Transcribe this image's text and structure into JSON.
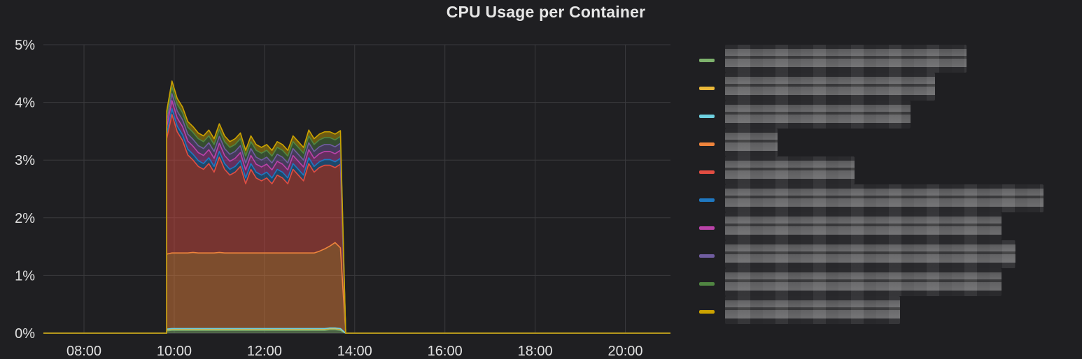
{
  "panel": {
    "title": "CPU Usage per Container"
  },
  "colors": {
    "background": "#1f1f22",
    "grid": "#3a3a3d",
    "text": "#e0e0e0"
  },
  "chart_data": {
    "type": "area",
    "stacked": true,
    "title": "CPU Usage per Container",
    "xlabel": "",
    "ylabel": "",
    "y_unit": "%",
    "xlim": [
      "07:06",
      "21:00"
    ],
    "ylim": [
      0,
      5
    ],
    "x_ticks": [
      "08:00",
      "10:00",
      "12:00",
      "14:00",
      "16:00",
      "18:00",
      "20:00"
    ],
    "y_ticks": [
      "0%",
      "1%",
      "2%",
      "3%",
      "4%",
      "5%"
    ],
    "grid": true,
    "legend_position": "right",
    "active_window": [
      "09:50",
      "13:50"
    ],
    "x": [
      "09:50",
      "09:57",
      "10:04",
      "10:11",
      "10:18",
      "10:25",
      "10:32",
      "10:39",
      "10:46",
      "10:53",
      "11:00",
      "11:07",
      "11:14",
      "11:21",
      "11:28",
      "11:35",
      "11:42",
      "11:49",
      "11:56",
      "12:03",
      "12:10",
      "12:17",
      "12:24",
      "12:31",
      "12:38",
      "12:45",
      "12:52",
      "12:59",
      "13:06",
      "13:13",
      "13:20",
      "13:27",
      "13:34",
      "13:41",
      "13:48"
    ],
    "series": [
      {
        "color": "#7eb26d",
        "values": [
          0.04,
          0.05,
          0.05,
          0.05,
          0.05,
          0.05,
          0.05,
          0.05,
          0.05,
          0.05,
          0.05,
          0.05,
          0.05,
          0.05,
          0.05,
          0.05,
          0.05,
          0.05,
          0.05,
          0.05,
          0.05,
          0.05,
          0.05,
          0.05,
          0.05,
          0.05,
          0.05,
          0.05,
          0.05,
          0.05,
          0.05,
          0.06,
          0.06,
          0.05,
          0.0
        ]
      },
      {
        "color": "#eab839",
        "values": [
          0.02,
          0.02,
          0.02,
          0.02,
          0.02,
          0.02,
          0.02,
          0.02,
          0.02,
          0.02,
          0.02,
          0.02,
          0.02,
          0.02,
          0.02,
          0.02,
          0.02,
          0.02,
          0.02,
          0.02,
          0.02,
          0.02,
          0.02,
          0.02,
          0.02,
          0.02,
          0.02,
          0.02,
          0.02,
          0.02,
          0.02,
          0.02,
          0.02,
          0.02,
          0.0
        ]
      },
      {
        "color": "#6ed0e0",
        "values": [
          0.01,
          0.01,
          0.01,
          0.01,
          0.01,
          0.01,
          0.01,
          0.01,
          0.01,
          0.01,
          0.01,
          0.01,
          0.01,
          0.01,
          0.01,
          0.01,
          0.01,
          0.01,
          0.01,
          0.01,
          0.01,
          0.01,
          0.01,
          0.01,
          0.01,
          0.01,
          0.01,
          0.01,
          0.01,
          0.01,
          0.01,
          0.01,
          0.01,
          0.01,
          0.0
        ]
      },
      {
        "color": "#ef843c",
        "values": [
          1.3,
          1.31,
          1.31,
          1.31,
          1.31,
          1.32,
          1.31,
          1.31,
          1.31,
          1.31,
          1.32,
          1.31,
          1.31,
          1.31,
          1.31,
          1.31,
          1.31,
          1.31,
          1.31,
          1.31,
          1.31,
          1.31,
          1.31,
          1.31,
          1.31,
          1.31,
          1.31,
          1.31,
          1.31,
          1.34,
          1.38,
          1.42,
          1.48,
          1.4,
          0.0
        ]
      },
      {
        "color": "#e24d42",
        "values": [
          2.0,
          2.4,
          2.1,
          1.95,
          1.7,
          1.6,
          1.5,
          1.45,
          1.55,
          1.4,
          1.65,
          1.45,
          1.35,
          1.4,
          1.5,
          1.2,
          1.45,
          1.3,
          1.25,
          1.3,
          1.2,
          1.35,
          1.3,
          1.2,
          1.45,
          1.35,
          1.25,
          1.55,
          1.4,
          1.45,
          1.45,
          1.4,
          1.3,
          1.45,
          0.0
        ]
      },
      {
        "color": "#1f78c1",
        "values": [
          0.08,
          0.1,
          0.1,
          0.1,
          0.1,
          0.1,
          0.1,
          0.1,
          0.1,
          0.1,
          0.1,
          0.1,
          0.1,
          0.1,
          0.1,
          0.1,
          0.1,
          0.1,
          0.1,
          0.1,
          0.1,
          0.1,
          0.1,
          0.1,
          0.1,
          0.1,
          0.1,
          0.1,
          0.1,
          0.1,
          0.1,
          0.1,
          0.1,
          0.1,
          0.0
        ]
      },
      {
        "color": "#ba43a9",
        "values": [
          0.12,
          0.14,
          0.14,
          0.14,
          0.14,
          0.14,
          0.14,
          0.14,
          0.14,
          0.14,
          0.14,
          0.14,
          0.14,
          0.14,
          0.14,
          0.14,
          0.14,
          0.14,
          0.14,
          0.14,
          0.14,
          0.14,
          0.14,
          0.14,
          0.14,
          0.14,
          0.14,
          0.14,
          0.14,
          0.14,
          0.14,
          0.14,
          0.14,
          0.14,
          0.0
        ]
      },
      {
        "color": "#705da0",
        "values": [
          0.1,
          0.12,
          0.12,
          0.12,
          0.12,
          0.12,
          0.12,
          0.12,
          0.12,
          0.12,
          0.12,
          0.12,
          0.12,
          0.12,
          0.12,
          0.12,
          0.12,
          0.12,
          0.12,
          0.12,
          0.12,
          0.12,
          0.12,
          0.12,
          0.12,
          0.12,
          0.12,
          0.12,
          0.12,
          0.12,
          0.12,
          0.12,
          0.12,
          0.12,
          0.0
        ]
      },
      {
        "color": "#508642",
        "values": [
          0.1,
          0.12,
          0.12,
          0.12,
          0.12,
          0.12,
          0.12,
          0.12,
          0.12,
          0.12,
          0.12,
          0.12,
          0.12,
          0.12,
          0.12,
          0.12,
          0.12,
          0.12,
          0.12,
          0.12,
          0.12,
          0.12,
          0.12,
          0.12,
          0.12,
          0.12,
          0.12,
          0.12,
          0.12,
          0.12,
          0.12,
          0.12,
          0.12,
          0.12,
          0.0
        ]
      },
      {
        "color": "#cca300",
        "values": [
          0.08,
          0.1,
          0.1,
          0.1,
          0.1,
          0.1,
          0.1,
          0.1,
          0.1,
          0.1,
          0.1,
          0.1,
          0.1,
          0.1,
          0.1,
          0.1,
          0.1,
          0.1,
          0.1,
          0.1,
          0.1,
          0.1,
          0.1,
          0.1,
          0.1,
          0.1,
          0.1,
          0.1,
          0.1,
          0.1,
          0.1,
          0.1,
          0.1,
          0.1,
          0.0
        ]
      }
    ]
  },
  "legend": {
    "items": [
      {
        "color": "#7eb26d",
        "name": ""
      },
      {
        "color": "#eab839",
        "name": ""
      },
      {
        "color": "#6ed0e0",
        "name": ""
      },
      {
        "color": "#ef843c",
        "name": ""
      },
      {
        "color": "#e24d42",
        "name": ""
      },
      {
        "color": "#1f78c1",
        "name": ""
      },
      {
        "color": "#ba43a9",
        "name": ""
      },
      {
        "color": "#705da0",
        "name": ""
      },
      {
        "color": "#508642",
        "name": ""
      },
      {
        "color": "#cca300",
        "name": ""
      }
    ]
  }
}
